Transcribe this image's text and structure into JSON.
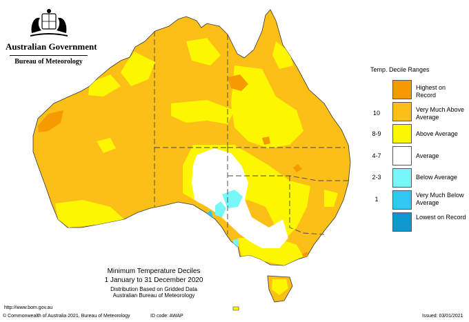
{
  "header": {
    "org_name": "Australian Government",
    "bureau_name": "Bureau of Meteorology"
  },
  "legend": {
    "title": "Temp. Decile Ranges",
    "items": [
      {
        "label": "Highest on Record",
        "range": "",
        "color": "#f59a00"
      },
      {
        "label": "Very Much Above Average",
        "range": "10",
        "color": "#fbbf17"
      },
      {
        "label": "Above Average",
        "range": "8-9",
        "color": "#fcf600"
      },
      {
        "label": "Average",
        "range": "4-7",
        "color": "#ffffff"
      },
      {
        "label": "Below Average",
        "range": "2-3",
        "color": "#77f7f7"
      },
      {
        "label": "Very Much Below Average",
        "range": "1",
        "color": "#2fc8f0"
      },
      {
        "label": "Lowest on Record",
        "range": "",
        "color": "#0d98cf"
      }
    ]
  },
  "map": {
    "title": "Minimum Temperature Deciles",
    "period": "1 January to 31 December 2020",
    "method": "Distribution Based on Gridded Data",
    "source": "Australian Bureau of Meteorology"
  },
  "footer": {
    "url": "http://www.bom.gov.au",
    "copyright": "© Commonwealth of Australia 2021, Bureau of Meteorology",
    "id_code": "ID code: AWAP",
    "issued": "Issued: 03/01/2021"
  }
}
